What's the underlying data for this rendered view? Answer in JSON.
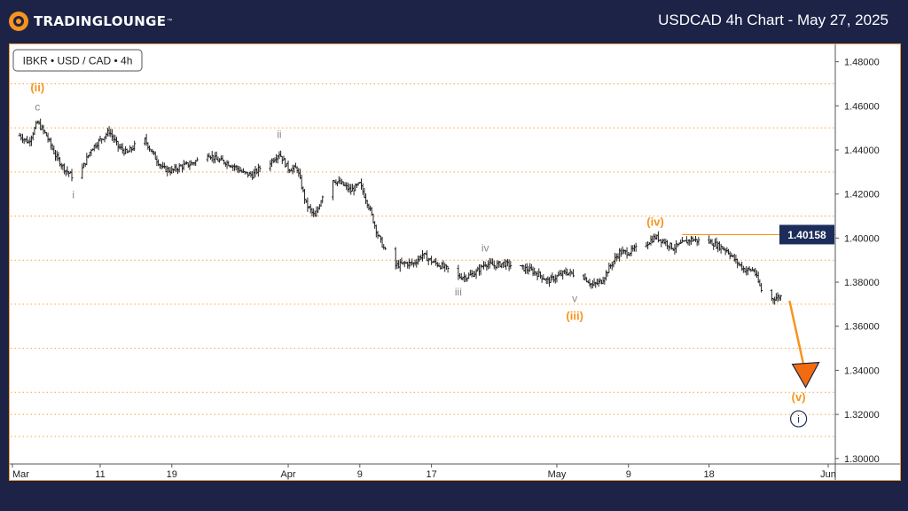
{
  "header": {
    "brand": "TradingLounge",
    "title": "USDCAD 4h Chart - May 27, 2025"
  },
  "colors": {
    "background": "#1c2347",
    "accent": "#f7941d",
    "price_box": "#1c2d5a",
    "wave_gray": "#888888"
  },
  "chart_data": {
    "type": "bar",
    "symbol_label": "IBKR • USD / CAD • 4h",
    "ylim": [
      1.2975,
      1.4875
    ],
    "y_ticks": [
      "1.48000",
      "1.46000",
      "1.44000",
      "1.42000",
      "1.40000",
      "1.38000",
      "1.36000",
      "1.34000",
      "1.32000",
      "1.30000"
    ],
    "y_tick_values": [
      1.48,
      1.46,
      1.44,
      1.42,
      1.4,
      1.38,
      1.36,
      1.34,
      1.32,
      1.3
    ],
    "grid_dotted_levels": [
      1.47,
      1.45,
      1.43,
      1.41,
      1.39,
      1.37,
      1.35,
      1.33,
      1.32,
      1.31
    ],
    "x_ticks": [
      "Mar",
      "11",
      "19",
      "Apr",
      "9",
      "17",
      "May",
      "9",
      "18",
      "Jun"
    ],
    "x_tick_dates": [
      "2025-03-01",
      "2025-03-11",
      "2025-03-19",
      "2025-04-01",
      "2025-04-09",
      "2025-04-17",
      "2025-05-01",
      "2025-05-09",
      "2025-05-18",
      "2025-06-01"
    ],
    "price_level": {
      "value": 1.40158,
      "label": "1.40158"
    },
    "projection": {
      "from_date": "2025-05-26",
      "from_price": 1.3715,
      "to_date": "2025-05-28",
      "to_price": 1.3335
    },
    "price_path": [
      [
        "2025-03-01",
        1.445
      ],
      [
        "2025-03-02",
        1.4465
      ],
      [
        "2025-03-03",
        1.4435
      ],
      [
        "2025-03-04",
        1.4525
      ],
      [
        "2025-03-05",
        1.4465
      ],
      [
        "2025-03-06",
        1.4375
      ],
      [
        "2025-03-07",
        1.4315
      ],
      [
        "2025-03-08",
        1.4275
      ],
      [
        "2025-03-09",
        1.4315
      ],
      [
        "2025-03-10",
        1.4405
      ],
      [
        "2025-03-11",
        1.4445
      ],
      [
        "2025-03-12",
        1.4485
      ],
      [
        "2025-03-13",
        1.4415
      ],
      [
        "2025-03-14",
        1.4385
      ],
      [
        "2025-03-15",
        1.4425
      ],
      [
        "2025-03-16",
        1.4445
      ],
      [
        "2025-03-17",
        1.4375
      ],
      [
        "2025-03-18",
        1.4315
      ],
      [
        "2025-03-19",
        1.4305
      ],
      [
        "2025-03-20",
        1.4325
      ],
      [
        "2025-03-21",
        1.4335
      ],
      [
        "2025-03-22",
        1.4355
      ],
      [
        "2025-03-23",
        1.4385
      ],
      [
        "2025-03-24",
        1.4355
      ],
      [
        "2025-03-25",
        1.4345
      ],
      [
        "2025-03-26",
        1.4325
      ],
      [
        "2025-03-27",
        1.4295
      ],
      [
        "2025-03-28",
        1.4285
      ],
      [
        "2025-03-29",
        1.4325
      ],
      [
        "2025-03-30",
        1.4345
      ],
      [
        "2025-03-31",
        1.4385
      ],
      [
        "2025-04-01",
        1.4315
      ],
      [
        "2025-04-02",
        1.4315
      ],
      [
        "2025-04-03",
        1.4155
      ],
      [
        "2025-04-04",
        1.4095
      ],
      [
        "2025-04-05",
        1.4215
      ],
      [
        "2025-04-06",
        1.4265
      ],
      [
        "2025-04-07",
        1.4245
      ],
      [
        "2025-04-08",
        1.4215
      ],
      [
        "2025-04-09",
        1.4245
      ],
      [
        "2025-04-10",
        1.4145
      ],
      [
        "2025-04-11",
        1.4015
      ],
      [
        "2025-04-12",
        1.3925
      ],
      [
        "2025-04-13",
        1.3875
      ],
      [
        "2025-04-14",
        1.3885
      ],
      [
        "2025-04-15",
        1.3885
      ],
      [
        "2025-04-16",
        1.3925
      ],
      [
        "2025-04-17",
        1.3895
      ],
      [
        "2025-04-18",
        1.3875
      ],
      [
        "2025-04-19",
        1.3855
      ],
      [
        "2025-04-20",
        1.3825
      ],
      [
        "2025-04-21",
        1.3825
      ],
      [
        "2025-04-22",
        1.3845
      ],
      [
        "2025-04-23",
        1.3885
      ],
      [
        "2025-04-24",
        1.3875
      ],
      [
        "2025-04-25",
        1.3885
      ],
      [
        "2025-04-26",
        1.3875
      ],
      [
        "2025-04-27",
        1.3865
      ],
      [
        "2025-04-28",
        1.3855
      ],
      [
        "2025-04-29",
        1.3835
      ],
      [
        "2025-04-30",
        1.3805
      ],
      [
        "2025-05-01",
        1.3825
      ],
      [
        "2025-05-02",
        1.3845
      ],
      [
        "2025-05-03",
        1.3835
      ],
      [
        "2025-05-04",
        1.3825
      ],
      [
        "2025-05-05",
        1.3785
      ],
      [
        "2025-05-06",
        1.3805
      ],
      [
        "2025-05-07",
        1.3875
      ],
      [
        "2025-05-08",
        1.3935
      ],
      [
        "2025-05-09",
        1.3935
      ],
      [
        "2025-05-10",
        1.3955
      ],
      [
        "2025-05-11",
        1.3975
      ],
      [
        "2025-05-12",
        1.4005
      ],
      [
        "2025-05-13",
        1.3985
      ],
      [
        "2025-05-14",
        1.3955
      ],
      [
        "2025-05-15",
        1.3975
      ],
      [
        "2025-05-16",
        1.3995
      ],
      [
        "2025-05-17",
        1.3985
      ],
      [
        "2025-05-18",
        1.3985
      ],
      [
        "2025-05-19",
        1.3965
      ],
      [
        "2025-05-20",
        1.3945
      ],
      [
        "2025-05-21",
        1.3895
      ],
      [
        "2025-05-22",
        1.3855
      ],
      [
        "2025-05-23",
        1.3855
      ],
      [
        "2025-05-24",
        1.3745
      ],
      [
        "2025-05-25",
        1.3725
      ],
      [
        "2025-05-26",
        1.3735
      ]
    ],
    "wave_labels": [
      {
        "text": "(ii)",
        "date": "2025-03-04",
        "price": 1.4665,
        "color": "#f7941d",
        "bold": true
      },
      {
        "text": "c",
        "date": "2025-03-04",
        "price": 1.458,
        "color": "#888888"
      },
      {
        "text": "i",
        "date": "2025-03-08",
        "price": 1.418,
        "color": "#888888"
      },
      {
        "text": "ii",
        "date": "2025-03-31",
        "price": 1.4455,
        "color": "#888888"
      },
      {
        "text": "iii",
        "date": "2025-04-20",
        "price": 1.374,
        "color": "#888888"
      },
      {
        "text": "iv",
        "date": "2025-04-23",
        "price": 1.394,
        "color": "#888888"
      },
      {
        "text": "v",
        "date": "2025-05-03",
        "price": 1.371,
        "color": "#888888"
      },
      {
        "text": "(iii)",
        "date": "2025-05-03",
        "price": 1.363,
        "color": "#f7941d",
        "bold": true
      },
      {
        "text": "(iv)",
        "date": "2025-05-12",
        "price": 1.4055,
        "color": "#f7941d",
        "bold": true
      },
      {
        "text": "(v)",
        "date": "2025-05-28",
        "price": 1.326,
        "color": "#f7941d",
        "bold": true
      }
    ],
    "circle_label": {
      "text": "i",
      "date": "2025-05-28",
      "price": 1.318
    }
  }
}
